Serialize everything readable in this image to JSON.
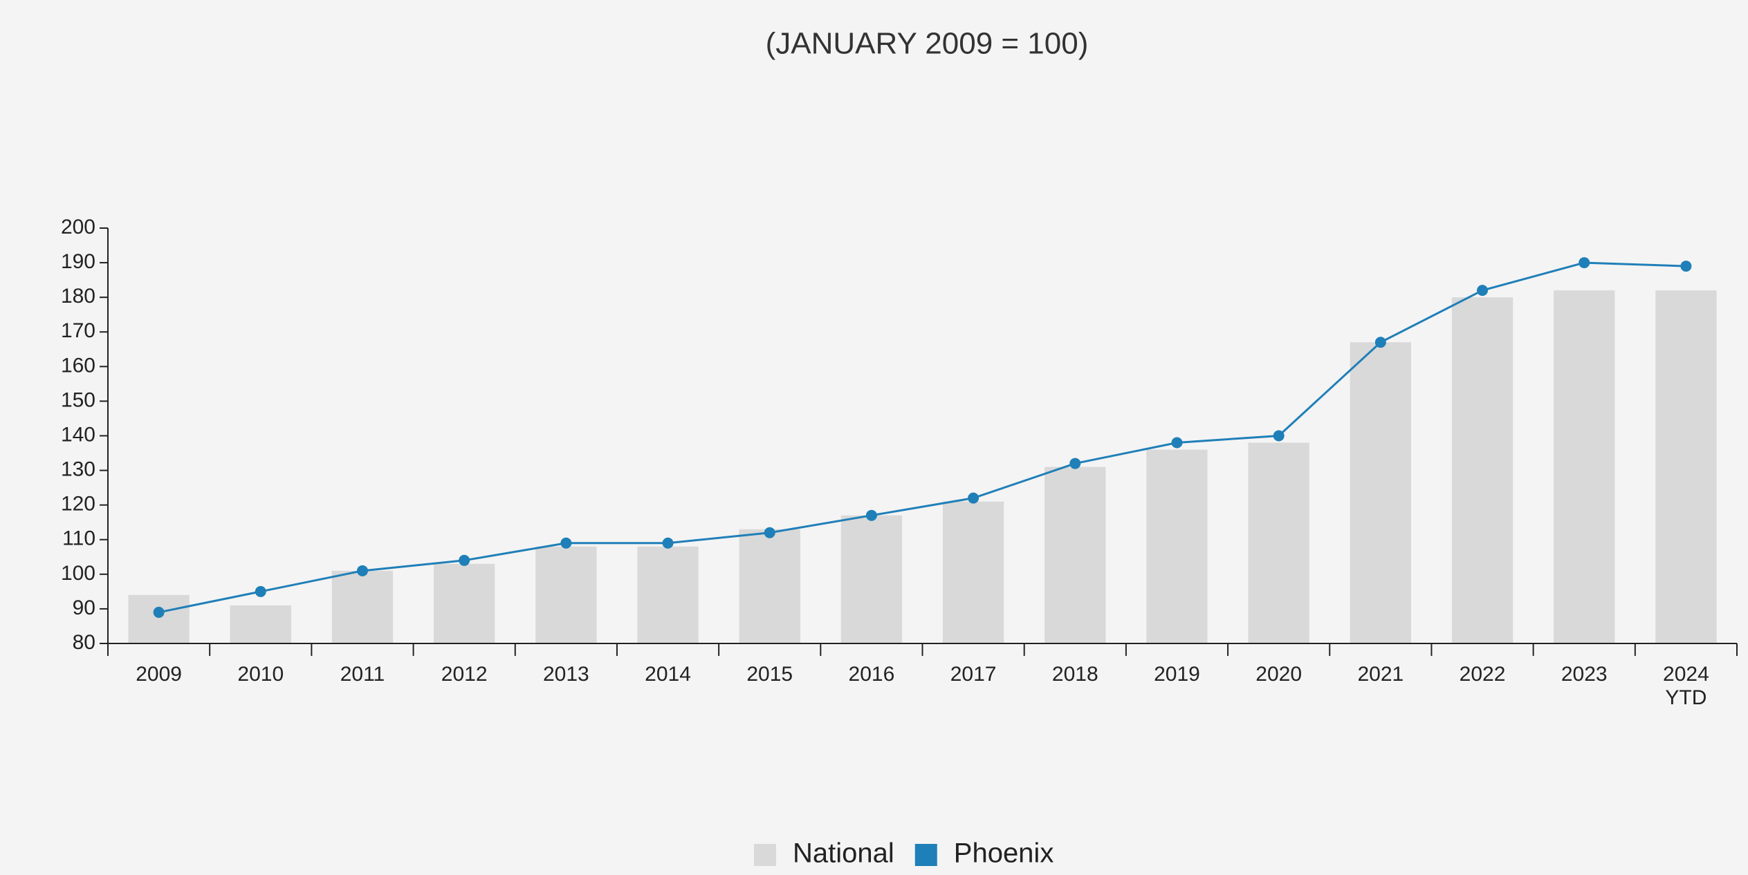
{
  "chart_data": {
    "type": "bar-line",
    "title": "(JANUARY 2009 = 100)",
    "categories": [
      "2009",
      "2010",
      "2011",
      "2012",
      "2013",
      "2014",
      "2015",
      "2016",
      "2017",
      "2018",
      "2019",
      "2020",
      "2021",
      "2022",
      "2023",
      "2024 YTD"
    ],
    "series": [
      {
        "name": "National",
        "type": "bar",
        "color": "#d9d9d9",
        "values": [
          94,
          91,
          101,
          103,
          108,
          108,
          113,
          117,
          121,
          131,
          136,
          138,
          167,
          180,
          182,
          182
        ]
      },
      {
        "name": "Phoenix",
        "type": "line",
        "color": "#1f7fb8",
        "values": [
          89,
          95,
          101,
          104,
          109,
          109,
          112,
          117,
          122,
          132,
          138,
          140,
          167,
          182,
          190,
          189
        ]
      }
    ],
    "ylim": [
      80,
      200
    ],
    "yticks": [
      80,
      90,
      100,
      110,
      120,
      130,
      140,
      150,
      160,
      170,
      180,
      190,
      200
    ],
    "grid": false,
    "legend": "bottom"
  }
}
